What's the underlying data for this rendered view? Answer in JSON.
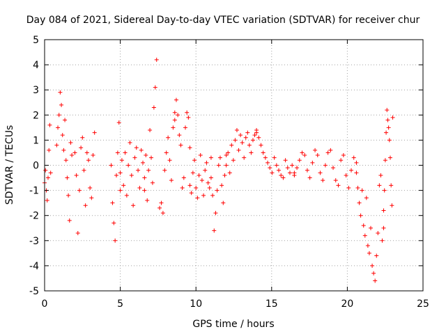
{
  "chart_data": {
    "type": "scatter",
    "title": "Day 084 of 2021, Sidereal Day-to-day VTEC variation (SDTVAR) for receiver chur",
    "xlabel": "GPS time / hours",
    "ylabel": "SDTVAR / TECUs",
    "xlim": [
      0,
      25
    ],
    "ylim": [
      -5,
      5
    ],
    "xticks": [
      "0",
      "5",
      "10",
      "15",
      "20",
      "25"
    ],
    "yticks": [
      "-5",
      "-4",
      "-3",
      "-2",
      "-1",
      "0",
      "1",
      "2",
      "3",
      "4",
      "5"
    ],
    "grid": true,
    "marker": "plus",
    "color": "#ff0000",
    "series": [
      {
        "name": "SDTVAR",
        "segments": [
          {
            "x0": 0.0,
            "x1": 0.4,
            "y": [
              -0.7,
              -0.2,
              -1.0,
              -1.4,
              -0.5,
              0.6,
              1.6,
              -0.3
            ]
          },
          {
            "x0": 0.8,
            "x1": 1.8,
            "y": [
              0.8,
              1.5,
              2.0,
              2.9,
              2.4,
              1.2,
              0.6,
              1.8,
              0.2,
              -0.5,
              -1.2,
              -2.2,
              0.9,
              0.4
            ]
          },
          {
            "x0": 2.0,
            "x1": 3.3,
            "y": [
              0.5,
              -0.4,
              -2.7,
              -1.0,
              0.7,
              1.1,
              -0.2,
              -1.6,
              0.5,
              0.2,
              -0.9,
              -1.3,
              0.4,
              1.3
            ]
          },
          {
            "x0": 4.4,
            "x1": 5.0,
            "y": [
              0.0,
              -1.5,
              -2.3,
              -3.0,
              -0.4,
              0.5,
              1.7,
              -1.0
            ]
          },
          {
            "x0": 5.0,
            "x1": 6.6,
            "y": [
              -0.3,
              0.2,
              -0.8,
              0.5,
              -1.2,
              0.0,
              0.9,
              -0.4,
              -1.6,
              0.3,
              0.7,
              -0.2,
              -0.9,
              0.6,
              0.1,
              -1.0
            ]
          },
          {
            "x0": 6.6,
            "x1": 7.4,
            "y": [
              -0.5,
              0.4,
              -1.4,
              -0.2,
              1.4,
              0.3,
              -0.7,
              2.3,
              3.1,
              4.2
            ]
          },
          {
            "x0": 7.6,
            "x1": 8.6,
            "y": [
              -1.7,
              -1.5,
              -1.9,
              -0.2,
              0.5,
              1.1,
              0.2,
              -0.6,
              1.5,
              2.1
            ]
          },
          {
            "x0": 8.6,
            "x1": 9.6,
            "y": [
              1.8,
              2.6,
              2.0,
              1.2,
              0.8,
              -0.9,
              -0.5,
              1.5,
              2.1,
              1.9,
              0.7
            ]
          },
          {
            "x0": 9.6,
            "x1": 11.0,
            "y": [
              -0.8,
              -1.1,
              -0.3,
              0.2,
              -0.9,
              -1.3,
              -0.4,
              0.4,
              -0.6,
              -1.2,
              -0.2,
              0.1,
              -0.7,
              -0.9,
              0.3
            ]
          },
          {
            "x0": 11.0,
            "x1": 12.0,
            "y": [
              -0.5,
              -1.2,
              -2.6,
              -1.9,
              -1.0,
              0.0,
              0.3,
              -0.8,
              -1.5,
              -0.4,
              0.4
            ]
          },
          {
            "x0": 12.0,
            "x1": 14.0,
            "y": [
              0.0,
              0.5,
              -0.3,
              0.8,
              0.2,
              1.0,
              1.4,
              0.6,
              1.2,
              0.9,
              0.3,
              1.1,
              1.3,
              0.8,
              0.5,
              1.0,
              1.2,
              1.4
            ]
          },
          {
            "x0": 14.0,
            "x1": 16.5,
            "y": [
              1.3,
              1.1,
              0.8,
              0.5,
              0.3,
              0.1,
              -0.1,
              -0.3,
              0.3,
              0.0,
              -0.2,
              -0.4,
              -0.5,
              0.2,
              -0.1,
              -0.3,
              0.0,
              -0.4
            ]
          },
          {
            "x0": 16.5,
            "x1": 20.6,
            "y": [
              -0.3,
              -0.1,
              0.2,
              0.5,
              0.4,
              -0.2,
              -0.5,
              0.1,
              0.6,
              0.4,
              -0.3,
              -0.6,
              0.0,
              0.5,
              0.6,
              -0.1,
              -0.6,
              -0.8,
              0.2,
              0.4,
              -0.4,
              -0.9,
              -0.2,
              0.3,
              0.1
            ]
          },
          {
            "x0": 20.6,
            "x1": 22.4,
            "y": [
              -0.3,
              -0.9,
              -1.5,
              -2.0,
              -1.0,
              -2.4,
              -2.8,
              -1.3,
              -3.2,
              -3.5,
              -2.5,
              -4.0,
              -4.3,
              -4.6,
              -3.6,
              -2.7,
              -0.8,
              -0.4,
              -3.0,
              -1.8
            ]
          },
          {
            "x0": 22.4,
            "x1": 23.0,
            "y": [
              -2.5,
              -1.0,
              0.2,
              1.3,
              2.2,
              1.8,
              1.5,
              1.0,
              0.3,
              -0.8,
              -1.6,
              1.9
            ]
          }
        ]
      }
    ]
  }
}
